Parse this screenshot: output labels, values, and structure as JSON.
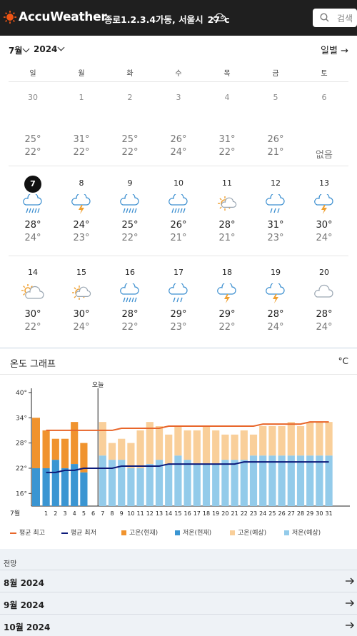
{
  "header": {
    "brand": "AccuWeather",
    "location": "종로1.2.3.4가동, 서울시",
    "current_temp": "27°c",
    "search_placeholder": "검색"
  },
  "calendar": {
    "month": "7월",
    "year": "2024",
    "view_label": "일별",
    "weekdays": [
      "일",
      "월",
      "화",
      "수",
      "목",
      "금",
      "토"
    ],
    "weeks": [
      [
        {
          "day": "30",
          "hi": "25°",
          "lo": "22°",
          "past": true
        },
        {
          "day": "1",
          "hi": "31°",
          "lo": "22°",
          "past": true
        },
        {
          "day": "2",
          "hi": "25°",
          "lo": "22°",
          "past": true
        },
        {
          "day": "3",
          "hi": "26°",
          "lo": "24°",
          "past": true
        },
        {
          "day": "4",
          "hi": "31°",
          "lo": "22°",
          "past": true
        },
        {
          "day": "5",
          "hi": "26°",
          "lo": "21°",
          "past": true
        },
        {
          "day": "6",
          "hi": "",
          "lo": "없음",
          "past": true
        }
      ],
      [
        {
          "day": "7",
          "icon": "rain-icon",
          "hi": "28°",
          "lo": "24°",
          "today": true
        },
        {
          "day": "8",
          "icon": "thunderstorm-icon",
          "hi": "24°",
          "lo": "23°"
        },
        {
          "day": "9",
          "icon": "rain-icon",
          "hi": "25°",
          "lo": "22°"
        },
        {
          "day": "10",
          "icon": "rain-icon",
          "hi": "26°",
          "lo": "21°"
        },
        {
          "day": "11",
          "icon": "partly-sunny-icon",
          "hi": "28°",
          "lo": "21°"
        },
        {
          "day": "12",
          "icon": "showers-icon",
          "hi": "31°",
          "lo": "23°"
        },
        {
          "day": "13",
          "icon": "thunderstorm-icon",
          "hi": "30°",
          "lo": "24°"
        }
      ],
      [
        {
          "day": "14",
          "icon": "mostly-cloudy-sun-icon",
          "hi": "30°",
          "lo": "22°"
        },
        {
          "day": "15",
          "icon": "partly-sunny-icon",
          "hi": "30°",
          "lo": "24°"
        },
        {
          "day": "16",
          "icon": "rain-icon",
          "hi": "28°",
          "lo": "22°"
        },
        {
          "day": "17",
          "icon": "showers-icon",
          "hi": "29°",
          "lo": "23°"
        },
        {
          "day": "18",
          "icon": "thunderstorm-icon",
          "hi": "29°",
          "lo": "22°"
        },
        {
          "day": "19",
          "icon": "thunderstorm-icon",
          "hi": "28°",
          "lo": "24°"
        },
        {
          "day": "20",
          "icon": "cloudy-icon",
          "hi": "28°",
          "lo": "24°"
        }
      ]
    ]
  },
  "graph": {
    "title": "온도 그래프",
    "unit": "°C",
    "today_label": "오늘",
    "legend": [
      "평균 최고",
      "평균 최저",
      "고온(현재)",
      "저온(현재)",
      "고온(예상)",
      "저온(예상)"
    ]
  },
  "chart_data": {
    "type": "bar",
    "month_label": "7월",
    "x": [
      1,
      2,
      3,
      4,
      5,
      6,
      7,
      8,
      9,
      10,
      11,
      12,
      13,
      14,
      15,
      16,
      17,
      18,
      19,
      20,
      21,
      22,
      23,
      24,
      25,
      26,
      27,
      28,
      29,
      30,
      31
    ],
    "ylim": [
      13,
      41
    ],
    "yticks": [
      "16°",
      "22°",
      "28°",
      "34°",
      "40°"
    ],
    "prev_day_bar": {
      "label": "30",
      "high": 34,
      "low": 22
    },
    "series": [
      {
        "name": "고온(현재)",
        "values": [
          31,
          29,
          29,
          33,
          28,
          null,
          null,
          null,
          null,
          null,
          null,
          null,
          null,
          null,
          null,
          null,
          null,
          null,
          null,
          null,
          null,
          null,
          null,
          null,
          null,
          null,
          null,
          null,
          null,
          null,
          null
        ]
      },
      {
        "name": "저온(현재)",
        "values": [
          22,
          24,
          22,
          23,
          21,
          null,
          null,
          null,
          null,
          null,
          null,
          null,
          null,
          null,
          null,
          null,
          null,
          null,
          null,
          null,
          null,
          null,
          null,
          null,
          null,
          null,
          null,
          null,
          null,
          null,
          null
        ]
      },
      {
        "name": "고온(예상)",
        "values": [
          null,
          null,
          null,
          null,
          null,
          null,
          33,
          28,
          29,
          28,
          31,
          33,
          32,
          30,
          32,
          31,
          31,
          32,
          31,
          30,
          30,
          31,
          30,
          32,
          32,
          32,
          33,
          32,
          33,
          33,
          33
        ]
      },
      {
        "name": "저온(예상)",
        "values": [
          null,
          null,
          null,
          null,
          null,
          null,
          25,
          24,
          24,
          22,
          22,
          23,
          24,
          23,
          25,
          24,
          23,
          23,
          23,
          24,
          24,
          24,
          25,
          25,
          25,
          25,
          25,
          25,
          25,
          25,
          25
        ]
      },
      {
        "name": "평균 최고",
        "values": [
          31,
          31,
          31,
          31,
          31,
          31,
          31,
          31,
          31.5,
          31.5,
          31.5,
          31.5,
          31.5,
          32,
          32,
          32,
          32,
          32,
          32,
          32,
          32,
          32,
          32,
          32.5,
          32.5,
          32.5,
          32.5,
          32.5,
          33,
          33,
          33
        ]
      },
      {
        "name": "평균 최저",
        "values": [
          21,
          21,
          21.5,
          21.5,
          22,
          22,
          22,
          22,
          22.5,
          22.5,
          22.5,
          22.5,
          22.5,
          23,
          23,
          23,
          23,
          23,
          23,
          23,
          23,
          23.5,
          23.5,
          23.5,
          23.5,
          23.5,
          23.5,
          23.5,
          23.5,
          23.5,
          23.5
        ]
      }
    ],
    "colors": {
      "avg_high": "#e8662a",
      "avg_low": "#0c1a7a",
      "high_cur": "#f0932e",
      "low_cur": "#3a95d2",
      "high_fc": "#f9cf9a",
      "low_fc": "#93cbea"
    }
  },
  "outlook": {
    "title": "전망",
    "items": [
      "8월 2024",
      "9월 2024",
      "10월 2024"
    ]
  }
}
